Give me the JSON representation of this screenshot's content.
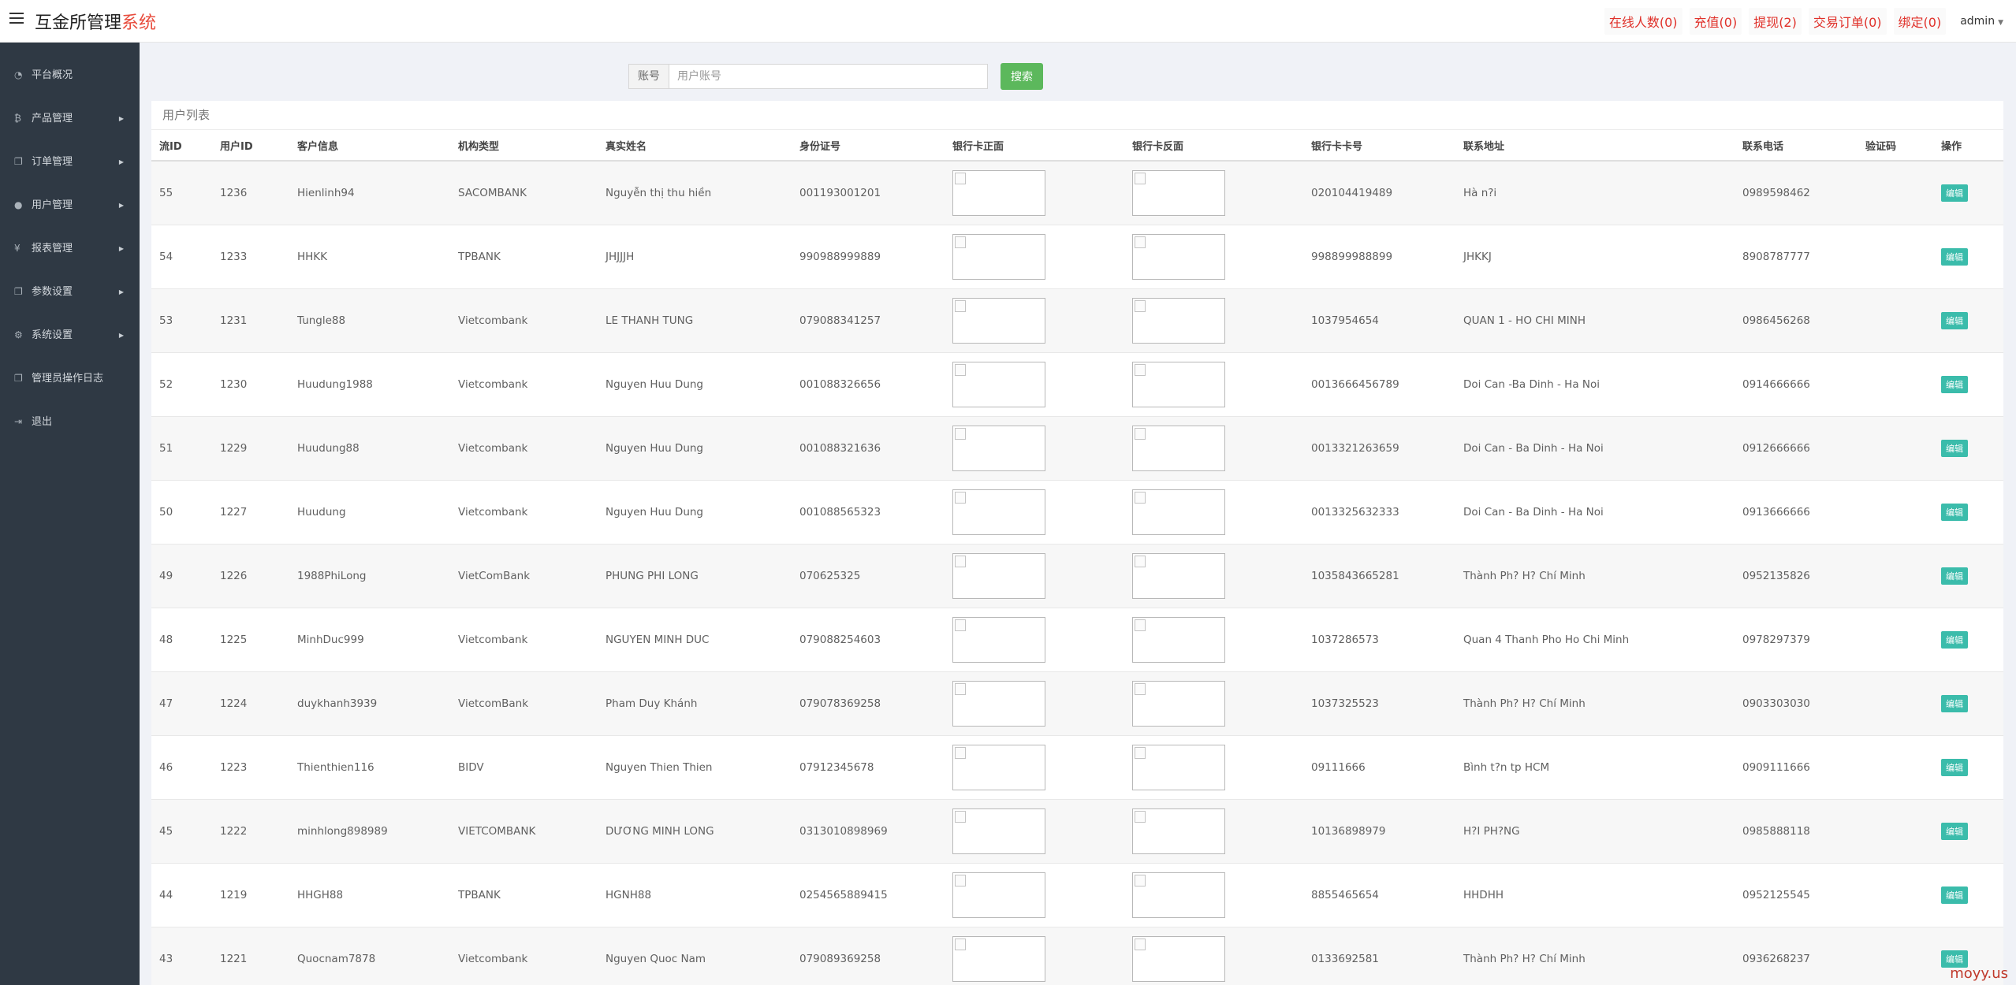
{
  "header": {
    "brand_main": "互金所管理",
    "brand_accent": "系统",
    "links": [
      "在线人数(0)",
      "充值(0)",
      "提现(2)",
      "交易订单(0)",
      "绑定(0)"
    ],
    "user": "admin"
  },
  "sidebar": {
    "items": [
      {
        "icon": "dashboard-icon",
        "glyph": "◔",
        "label": "平台概况",
        "arrow": false
      },
      {
        "icon": "bitcoin-icon",
        "glyph": "₿",
        "label": "产品管理",
        "arrow": true
      },
      {
        "icon": "copy-icon",
        "glyph": "❐",
        "label": "订单管理",
        "arrow": true
      },
      {
        "icon": "user-icon",
        "glyph": "●",
        "label": "用户管理",
        "arrow": true
      },
      {
        "icon": "yen-icon",
        "glyph": "¥",
        "label": "报表管理",
        "arrow": true
      },
      {
        "icon": "copy-icon",
        "glyph": "❐",
        "label": "参数设置",
        "arrow": true
      },
      {
        "icon": "gears-icon",
        "glyph": "⚙",
        "label": "系统设置",
        "arrow": true
      },
      {
        "icon": "file-icon",
        "glyph": "❐",
        "label": "管理员操作日志",
        "arrow": false
      },
      {
        "icon": "sign-out-icon",
        "glyph": "⇥",
        "label": "退出",
        "arrow": false
      }
    ]
  },
  "search": {
    "label": "账号",
    "placeholder": "用户账号",
    "value": "",
    "button": "搜索"
  },
  "panel": {
    "title": "用户列表",
    "columns": [
      "流ID",
      "用户ID",
      "客户信息",
      "机构类型",
      "真实姓名",
      "身份证号",
      "银行卡正面",
      "银行卡反面",
      "银行卡卡号",
      "联系地址",
      "联系电话",
      "验证码",
      "操作"
    ],
    "edit_label": "编辑",
    "rows": [
      [
        "55",
        "1236",
        "Hienlinh94",
        "SACOMBANK",
        "Nguyễn thị thu hiền",
        "001193001201",
        "",
        "",
        "020104419489",
        "Hà n?i",
        "0989598462",
        ""
      ],
      [
        "54",
        "1233",
        "HHKK",
        "TPBANK",
        "JHJJJH",
        "990988999889",
        "",
        "",
        "998899988899",
        "JHKKJ",
        "8908787777",
        ""
      ],
      [
        "53",
        "1231",
        "Tungle88",
        "Vietcombank",
        "LE THANH TUNG",
        "079088341257",
        "",
        "",
        "1037954654",
        "QUAN 1 - HO CHI MINH",
        "0986456268",
        ""
      ],
      [
        "52",
        "1230",
        "Huudung1988",
        "Vietcombank",
        "Nguyen Huu Dung",
        "001088326656",
        "",
        "",
        "0013666456789",
        "Doi Can -Ba Dinh - Ha Noi",
        "0914666666",
        ""
      ],
      [
        "51",
        "1229",
        "Huudung88",
        "Vietcombank",
        "Nguyen Huu Dung",
        "001088321636",
        "",
        "",
        "0013321263659",
        "Doi Can - Ba Dinh - Ha Noi",
        "0912666666",
        ""
      ],
      [
        "50",
        "1227",
        "Huudung",
        "Vietcombank",
        "Nguyen Huu Dung",
        "001088565323",
        "",
        "",
        "0013325632333",
        "Doi Can - Ba Dinh - Ha Noi",
        "0913666666",
        ""
      ],
      [
        "49",
        "1226",
        "1988PhiLong",
        "VietComBank",
        "PHUNG PHI LONG",
        "070625325",
        "",
        "",
        "1035843665281",
        "Thành Ph? H? Chí Minh",
        "0952135826",
        ""
      ],
      [
        "48",
        "1225",
        "MinhDuc999",
        "Vietcombank",
        "NGUYEN MINH DUC",
        "079088254603",
        "",
        "",
        "1037286573",
        "Quan 4 Thanh Pho Ho Chi Minh",
        "0978297379",
        ""
      ],
      [
        "47",
        "1224",
        "duykhanh3939",
        "VietcomBank",
        "Pham Duy Khánh",
        "079078369258",
        "",
        "",
        "1037325523",
        "Thành Ph? H? Chí Minh",
        "0903303030",
        ""
      ],
      [
        "46",
        "1223",
        "Thienthien116",
        "BIDV",
        "Nguyen Thien Thien",
        "07912345678",
        "",
        "",
        "09111666",
        "Bình t?n tp HCM",
        "0909111666",
        ""
      ],
      [
        "45",
        "1222",
        "minhlong898989",
        "VIETCOMBANK",
        "DƯƠNG MINH LONG",
        "0313010898969",
        "",
        "",
        "10136898979",
        "H?I PH?NG",
        "0985888118",
        ""
      ],
      [
        "44",
        "1219",
        "HHGH88",
        "TPBANK",
        "HGNH88",
        "0254565889415",
        "",
        "",
        "8855465654",
        "HHDHH",
        "0952125545",
        ""
      ],
      [
        "43",
        "1221",
        "Quocnam7878",
        "Vietcombank",
        "Nguyen Quoc Nam",
        "079089369258",
        "",
        "",
        "0133692581",
        "Thành Ph? H? Chí Minh",
        "0936268237",
        ""
      ]
    ]
  },
  "watermark": "moyy.us"
}
